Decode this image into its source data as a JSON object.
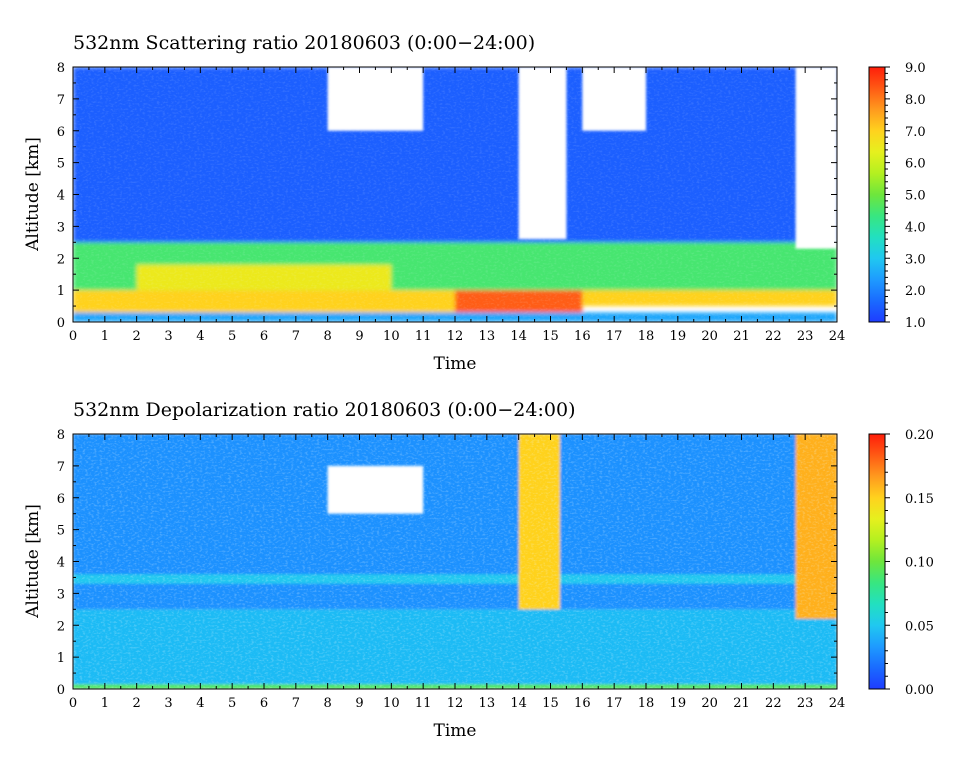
{
  "colors": {
    "colormap": [
      "#1e3cff",
      "#1a6bff",
      "#1e9bff",
      "#20c8f0",
      "#22e0c0",
      "#38e680",
      "#6ee63c",
      "#b4f020",
      "#e6f01e",
      "#ffd21e",
      "#ff9a1e",
      "#ff5a14",
      "#ff1e0a"
    ],
    "no_data": "#ffffff"
  },
  "chart_data": [
    {
      "type": "heatmap",
      "title": "532nm Scattering ratio  20180603 (0:00−24:00)",
      "xlabel": "Time",
      "ylabel": "Altitude [km]",
      "xlim": [
        0,
        24
      ],
      "ylim": [
        0,
        8
      ],
      "x_ticks": [
        "0",
        "1",
        "2",
        "3",
        "4",
        "5",
        "6",
        "7",
        "8",
        "9",
        "10",
        "11",
        "12",
        "13",
        "14",
        "15",
        "16",
        "17",
        "18",
        "19",
        "20",
        "21",
        "22",
        "23",
        "24"
      ],
      "y_ticks": [
        "0",
        "1",
        "2",
        "3",
        "4",
        "5",
        "6",
        "7",
        "8"
      ],
      "colorbar": {
        "range": [
          1.0,
          9.0
        ],
        "ticks": [
          "1.0",
          "2.0",
          "3.0",
          "4.0",
          "5.0",
          "6.0",
          "7.0",
          "8.0",
          "9.0"
        ]
      },
      "features": [
        {
          "x": [
            0,
            24
          ],
          "y": [
            0,
            0.3
          ],
          "value": 2.5
        },
        {
          "x": [
            0,
            12
          ],
          "y": [
            0.3,
            1.0
          ],
          "value": 7.0
        },
        {
          "x": [
            12,
            16
          ],
          "y": [
            0.3,
            1.0
          ],
          "value": 8.3
        },
        {
          "x": [
            16,
            24
          ],
          "y": [
            0.5,
            1.5
          ],
          "value": 7.0
        },
        {
          "x": [
            0,
            24
          ],
          "y": [
            1.0,
            2.5
          ],
          "value": 4.5
        },
        {
          "x": [
            2,
            10
          ],
          "y": [
            1.0,
            1.8
          ],
          "value": 6.5
        },
        {
          "x": [
            0,
            24
          ],
          "y": [
            2.5,
            8.0
          ],
          "value": 1.5
        },
        {
          "x": [
            8,
            11
          ],
          "y": [
            6.0,
            8.0
          ],
          "value": "no data"
        },
        {
          "x": [
            14,
            15.5
          ],
          "y": [
            2.6,
            8.0
          ],
          "value": "no data"
        },
        {
          "x": [
            16,
            18
          ],
          "y": [
            6.0,
            8.0
          ],
          "value": "no data"
        },
        {
          "x": [
            22.7,
            24
          ],
          "y": [
            2.3,
            8.0
          ],
          "value": "no data"
        }
      ]
    },
    {
      "type": "heatmap",
      "title": "532nm Depolarization ratio  20180603 (0:00−24:00)",
      "xlabel": "Time",
      "ylabel": "Altitude [km]",
      "xlim": [
        0,
        24
      ],
      "ylim": [
        0,
        8
      ],
      "x_ticks": [
        "0",
        "1",
        "2",
        "3",
        "4",
        "5",
        "6",
        "7",
        "8",
        "9",
        "10",
        "11",
        "12",
        "13",
        "14",
        "15",
        "16",
        "17",
        "18",
        "19",
        "20",
        "21",
        "22",
        "23",
        "24"
      ],
      "y_ticks": [
        "0",
        "1",
        "2",
        "3",
        "4",
        "5",
        "6",
        "7",
        "8"
      ],
      "colorbar": {
        "range": [
          0.0,
          0.2
        ],
        "ticks": [
          "0.00",
          "0.05",
          "0.10",
          "0.15",
          "0.20"
        ]
      },
      "features": [
        {
          "x": [
            0,
            24
          ],
          "y": [
            0,
            0.15
          ],
          "value": 0.09
        },
        {
          "x": [
            0,
            24
          ],
          "y": [
            0.15,
            2.5
          ],
          "value": 0.045
        },
        {
          "x": [
            0,
            24
          ],
          "y": [
            2.5,
            8.0
          ],
          "value": 0.03
        },
        {
          "x": [
            0,
            24
          ],
          "y": [
            3.3,
            3.6
          ],
          "value": 0.05
        },
        {
          "x": [
            14,
            15.3
          ],
          "y": [
            2.5,
            8.0
          ],
          "value": 0.15
        },
        {
          "x": [
            22.7,
            24
          ],
          "y": [
            2.2,
            8.0
          ],
          "value": 0.16
        },
        {
          "x": [
            8,
            11
          ],
          "y": [
            5.5,
            7.0
          ],
          "value": "no data"
        }
      ]
    }
  ]
}
